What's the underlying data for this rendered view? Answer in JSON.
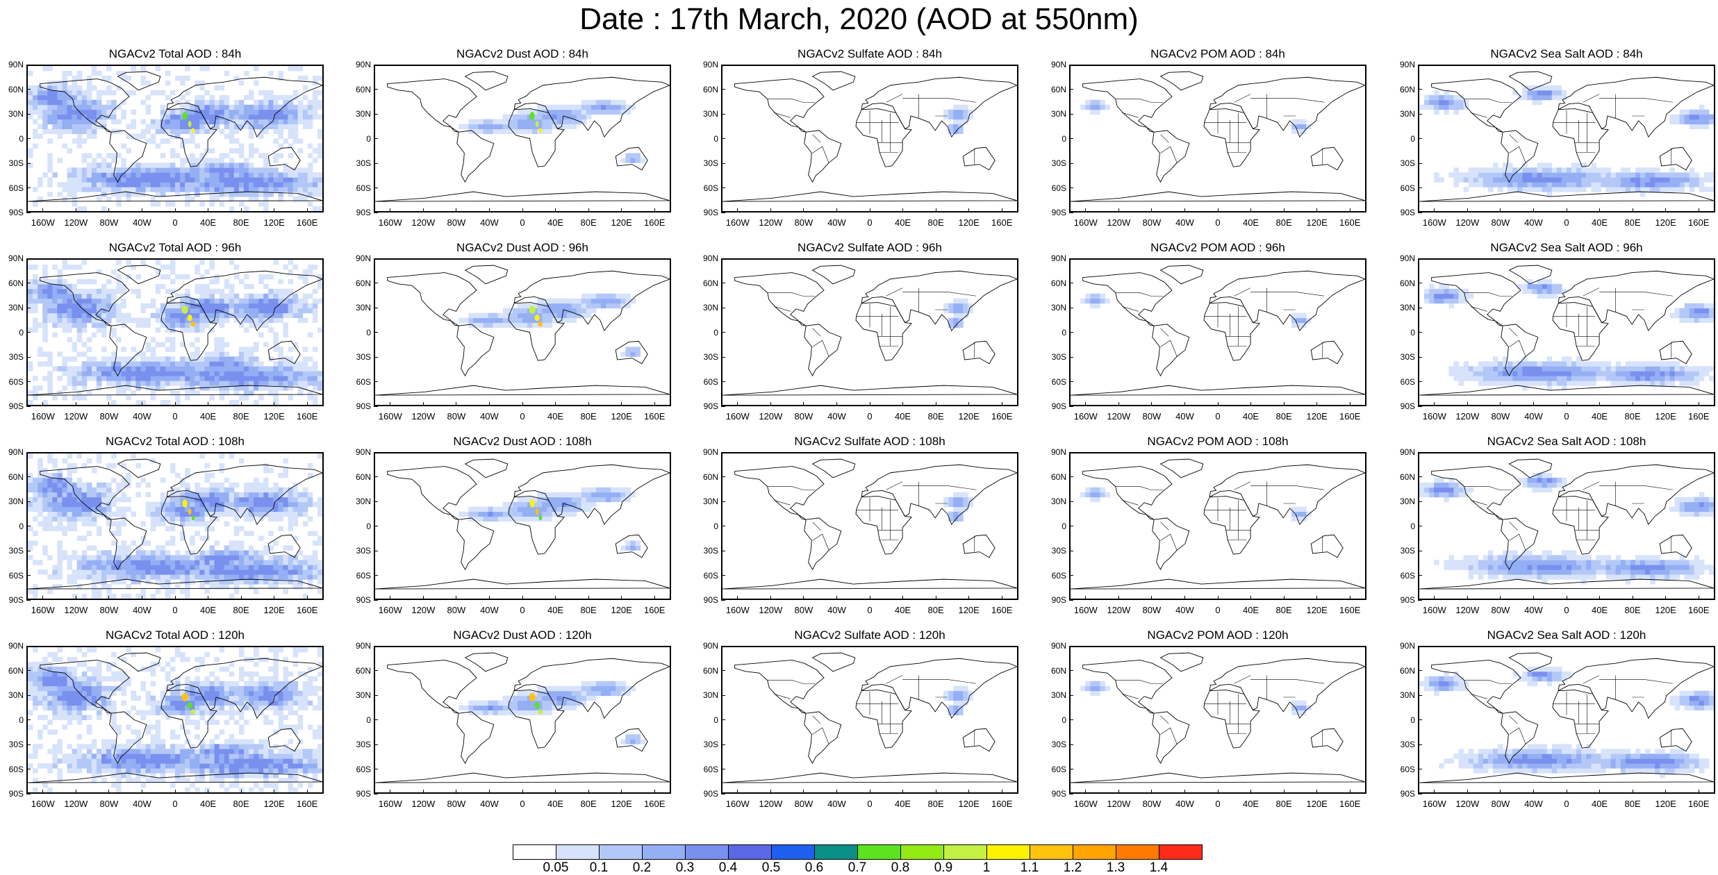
{
  "title": "Date : 17th March, 2020 (AOD at 550nm)",
  "lat_labels": [
    "90N",
    "60N",
    "30N",
    "0",
    "30S",
    "60S",
    "90S"
  ],
  "lon_labels": [
    "160W",
    "120W",
    "80W",
    "40W",
    "0",
    "40E",
    "80E",
    "120E",
    "160E"
  ],
  "species": [
    {
      "key": "total",
      "country_borders": false
    },
    {
      "key": "dust",
      "country_borders": false
    },
    {
      "key": "sulfate",
      "country_borders": true
    },
    {
      "key": "pom",
      "country_borders": true
    },
    {
      "key": "seasalt",
      "country_borders": true
    }
  ],
  "panel_titles": [
    [
      "NGACv2 Total AOD : 84h",
      "NGACv2 Dust AOD : 84h",
      "NGACv2 Sulfate AOD : 84h",
      "NGACv2 POM AOD : 84h",
      "NGACv2 Sea Salt AOD : 84h"
    ],
    [
      "NGACv2 Total AOD : 96h",
      "NGACv2 Dust AOD : 96h",
      "NGACv2 Sulfate AOD : 96h",
      "NGACv2 POM AOD : 96h",
      "NGACv2 Sea Salt AOD : 96h"
    ],
    [
      "NGACv2 Total AOD : 108h",
      "NGACv2 Dust AOD : 108h",
      "NGACv2 Sulfate AOD : 108h",
      "NGACv2 POM AOD : 108h",
      "NGACv2 Sea Salt AOD : 108h"
    ],
    [
      "NGACv2 Total AOD : 120h",
      "NGACv2 Dust AOD : 120h",
      "NGACv2 Sulfate AOD : 120h",
      "NGACv2 POM AOD : 120h",
      "NGACv2 Sea Salt  AOD : 120h"
    ]
  ],
  "colorbar": {
    "labels": [
      "0.05",
      "0.1",
      "0.2",
      "0.3",
      "0.4",
      "0.5",
      "0.6",
      "0.7",
      "0.8",
      "0.9",
      "1",
      "1.1",
      "1.2",
      "1.3",
      "1.4"
    ],
    "colors": [
      "#ffffff",
      "#d7e3fb",
      "#b4c8f8",
      "#94aff4",
      "#7a90ee",
      "#5a68e6",
      "#1f5ff0",
      "#0a8f86",
      "#5ce21f",
      "#93ea14",
      "#c4f043",
      "#fff200",
      "#ffc20e",
      "#ffa500",
      "#ff7a00",
      "#ff2a1a"
    ]
  }
}
